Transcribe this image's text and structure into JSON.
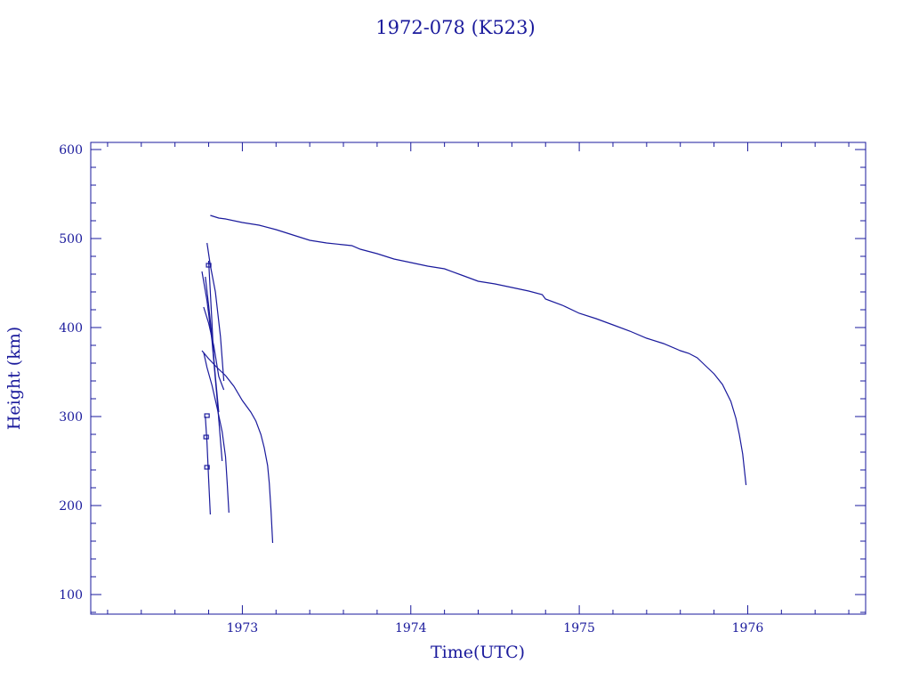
{
  "chart_data": {
    "type": "line",
    "title": "1972-078 (K523)",
    "xlabel": "Time(UTC)",
    "ylabel": "Height (km)",
    "xlim": [
      1972.1,
      1976.7
    ],
    "ylim": [
      78,
      608
    ],
    "x_ticks": [
      1973,
      1974,
      1975,
      1976
    ],
    "x_tick_labels": [
      "1973",
      "1974",
      "1975",
      "1976"
    ],
    "y_ticks": [
      100,
      200,
      300,
      400,
      500,
      600
    ],
    "y_tick_labels": [
      "100",
      "200",
      "300",
      "400",
      "500",
      "600"
    ],
    "grid": false,
    "color": "#1a1a9c",
    "series": [
      {
        "x": [
          1972.81,
          1972.86,
          1972.9,
          1973.0,
          1973.1,
          1973.2,
          1973.25,
          1973.3,
          1973.4,
          1973.5,
          1973.6,
          1973.65,
          1973.7,
          1973.8,
          1973.9,
          1974.0,
          1974.1,
          1974.2,
          1974.3,
          1974.4,
          1974.5,
          1974.6,
          1974.7,
          1974.78,
          1974.8,
          1974.9,
          1975.0,
          1975.1,
          1975.2,
          1975.3,
          1975.4,
          1975.5,
          1975.6,
          1975.65,
          1975.7,
          1975.75,
          1975.8,
          1975.85,
          1975.9,
          1975.93,
          1975.95,
          1975.97,
          1975.99
        ],
        "y": [
          526,
          523,
          522,
          518,
          515,
          510,
          507,
          504,
          498,
          495,
          493,
          492,
          488,
          483,
          477,
          473,
          469,
          466,
          459,
          452,
          449,
          445,
          441,
          437,
          432,
          425,
          416,
          410,
          403,
          396,
          388,
          382,
          374,
          371,
          366,
          357,
          348,
          336,
          317,
          298,
          280,
          258,
          223
        ]
      },
      {
        "x": [
          1972.76,
          1972.8,
          1972.85,
          1972.9,
          1972.95,
          1973.0,
          1973.05,
          1973.08,
          1973.11,
          1973.13,
          1973.15,
          1973.16,
          1973.17,
          1973.18
        ],
        "y": [
          374,
          365,
          355,
          346,
          334,
          318,
          305,
          295,
          280,
          265,
          245,
          225,
          195,
          158
        ]
      },
      {
        "x": [
          1972.77,
          1972.79,
          1972.82,
          1972.85,
          1972.88,
          1972.9,
          1972.91,
          1972.92
        ],
        "y": [
          372,
          355,
          335,
          310,
          283,
          255,
          225,
          192
        ]
      },
      {
        "x": [
          1972.76,
          1972.79,
          1972.82,
          1972.85,
          1972.88
        ],
        "y": [
          463,
          430,
          385,
          320,
          250
        ]
      },
      {
        "x": [
          1972.77,
          1972.8,
          1972.83,
          1972.86,
          1972.89
        ],
        "y": [
          423,
          405,
          380,
          345,
          330
        ]
      },
      {
        "x": [
          1972.78,
          1972.8,
          1972.82,
          1972.84,
          1972.86
        ],
        "y": [
          457,
          425,
          390,
          345,
          305
        ]
      },
      {
        "x": [
          1972.79,
          1972.81,
          1972.84,
          1972.87,
          1972.89
        ],
        "y": [
          495,
          470,
          440,
          390,
          340
        ]
      },
      {
        "x": [
          1972.8,
          1972.81,
          1972.82,
          1972.83
        ],
        "y": [
          475,
          440,
          405,
          365
        ]
      },
      {
        "x": [
          1972.78,
          1972.79,
          1972.8,
          1972.81
        ],
        "y": [
          300,
          270,
          230,
          190
        ]
      }
    ],
    "markers": [
      {
        "x": 1972.79,
        "y": 301
      },
      {
        "x": 1972.785,
        "y": 277
      },
      {
        "x": 1972.79,
        "y": 243
      },
      {
        "x": 1972.8,
        "y": 470
      }
    ]
  }
}
